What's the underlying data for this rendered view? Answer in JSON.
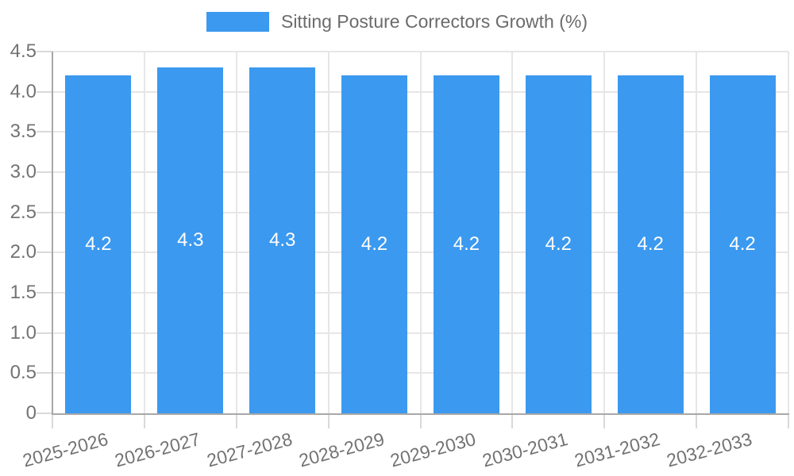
{
  "chart_data": {
    "type": "bar",
    "title": "Sitting Posture Correctors Growth (%)",
    "categories": [
      "2025-2026",
      "2026-2027",
      "2027-2028",
      "2028-2029",
      "2029-2030",
      "2030-2031",
      "2031-2032",
      "2032-2033"
    ],
    "series": [
      {
        "name": "Sitting Posture Correctors Growth (%)",
        "values": [
          4.2,
          4.3,
          4.3,
          4.2,
          4.2,
          4.2,
          4.2,
          4.2
        ],
        "value_labels": [
          "4.2",
          "4.3",
          "4.3",
          "4.2",
          "4.2",
          "4.2",
          "4.2",
          "4.2"
        ]
      }
    ],
    "xlabel": "",
    "ylabel": "",
    "ylim": [
      0,
      4.5
    ],
    "y_tick_values": [
      0,
      0.5,
      1.0,
      1.5,
      2.0,
      2.5,
      3.0,
      3.5,
      4.0,
      4.5
    ],
    "y_tick_labels": [
      "0",
      "0.5",
      "1.0",
      "1.5",
      "2.0",
      "2.5",
      "3.0",
      "3.5",
      "4.0",
      "4.5"
    ],
    "legend_position": "top",
    "grid": "on",
    "value_labels_inside_bars": true,
    "colors": {
      "bar": "#3b99ef",
      "bar_value_text": "#ffffff",
      "gridline": "#e6e6e6",
      "axis_line": "#a8a8a8",
      "tick_mark": "#d9d9d9",
      "tick_text": "#737373",
      "legend_text": "#6b6b6b",
      "background": "#ffffff"
    }
  }
}
